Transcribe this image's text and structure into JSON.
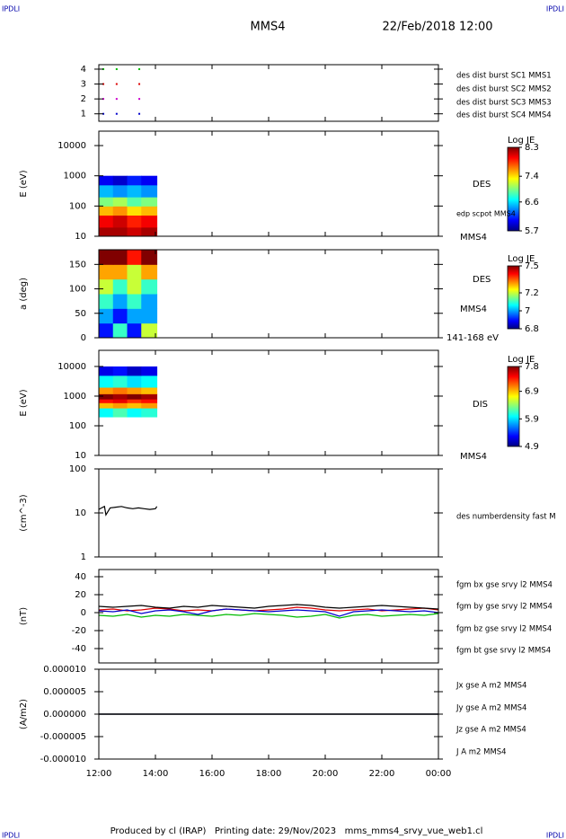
{
  "header": {
    "left_tag": "IPDLI",
    "right_tag": "IPDLI",
    "title": "MMS4",
    "date": "22/Feb/2018 12:00"
  },
  "footer": {
    "text": "Produced by cl (IRAP)   Printing date: 29/Nov/2023   mms_mms4_srvy_vue_web1.cl",
    "left_tag": "IPDLI",
    "right_tag": "IPDLI"
  },
  "chart_data": [
    {
      "type": "scatter",
      "ylim": [
        0.5,
        4.3
      ],
      "yticks": [
        1,
        2,
        3,
        4
      ],
      "series": [
        {
          "name": "des dist burst SC1 MMS1",
          "color": "#0000cc",
          "x": [
            12.16,
            12.63,
            13.43
          ],
          "values": [
            1,
            1,
            1
          ]
        },
        {
          "name": "des dist burst SC2 MMS2",
          "color": "#cc00cc",
          "x": [
            12.16,
            12.63,
            13.43
          ],
          "values": [
            2,
            2,
            2
          ]
        },
        {
          "name": "des dist burst SC3 MMS3",
          "color": "#dd0000",
          "x": [
            12.16,
            12.63,
            13.43
          ],
          "values": [
            3,
            3,
            3
          ]
        },
        {
          "name": "des dist burst SC4 MMS4",
          "color": "#00bb00",
          "x": [
            12.16,
            12.63,
            13.43
          ],
          "values": [
            4,
            4,
            4
          ]
        }
      ]
    },
    {
      "type": "heatmap",
      "ylabel": "E (eV)",
      "log": true,
      "ylim": [
        10,
        30000
      ],
      "yticks": [
        10,
        100,
        1000,
        10000
      ],
      "side_labels": [
        "DES",
        "edp scpot MMS4",
        "MMS4"
      ],
      "xedges": [
        12.0,
        12.5,
        13.0,
        13.5,
        14.05
      ],
      "yedges": [
        10,
        20,
        50,
        100,
        200,
        500,
        1000
      ],
      "z": [
        [
          8.2,
          8.2,
          8.1,
          8.2
        ],
        [
          8.0,
          8.1,
          7.9,
          8.0
        ],
        [
          7.5,
          7.6,
          7.4,
          7.5
        ],
        [
          7.0,
          7.1,
          6.9,
          7.0
        ],
        [
          6.5,
          6.4,
          6.5,
          6.4
        ],
        [
          6.0,
          5.9,
          6.1,
          6.0
        ]
      ],
      "colorbar": {
        "label": "Log JE",
        "zlim": [
          5.7,
          8.3
        ],
        "zticks": [
          5.7,
          6.6,
          7.4,
          8.3
        ]
      }
    },
    {
      "type": "heatmap",
      "ylabel": "a (deg)",
      "log": false,
      "ylim": [
        0,
        180
      ],
      "yticks": [
        0,
        50,
        100,
        150
      ],
      "side_labels": [
        "DES",
        "MMS4",
        "141-168 eV"
      ],
      "xedges": [
        12.0,
        12.5,
        13.0,
        13.5,
        14.05
      ],
      "yedges": [
        0,
        30,
        60,
        90,
        120,
        150,
        180
      ],
      "z": [
        [
          6.9,
          7.1,
          6.9,
          7.2
        ],
        [
          7.0,
          6.9,
          7.0,
          7.0
        ],
        [
          7.1,
          7.0,
          7.1,
          7.0
        ],
        [
          7.2,
          7.1,
          7.2,
          7.1
        ],
        [
          7.3,
          7.3,
          7.2,
          7.3
        ],
        [
          7.5,
          7.5,
          7.4,
          7.5
        ]
      ],
      "colorbar": {
        "label": "Log JE",
        "zlim": [
          6.8,
          7.5
        ],
        "zticks": [
          6.8,
          7.0,
          7.2,
          7.5
        ]
      }
    },
    {
      "type": "heatmap",
      "ylabel": "E (eV)",
      "log": true,
      "ylim": [
        10,
        35000
      ],
      "yticks": [
        10,
        100,
        1000,
        10000
      ],
      "side_labels": [
        "DIS",
        "MMS4"
      ],
      "xedges": [
        12.0,
        12.5,
        13.0,
        13.5,
        14.05
      ],
      "yedges": [
        200,
        400,
        600,
        800,
        1200,
        2000,
        5000,
        10000
      ],
      "z": [
        [
          6.0,
          6.2,
          6.0,
          6.1
        ],
        [
          6.9,
          7.0,
          6.9,
          7.0
        ],
        [
          7.4,
          7.5,
          7.3,
          7.4
        ],
        [
          7.8,
          7.7,
          7.8,
          7.7
        ],
        [
          7.0,
          7.1,
          7.0,
          6.9
        ],
        [
          6.0,
          6.1,
          5.9,
          6.0
        ],
        [
          5.2,
          5.3,
          5.1,
          5.2
        ]
      ],
      "colorbar": {
        "label": "Log JE",
        "zlim": [
          4.9,
          7.8
        ],
        "zticks": [
          4.9,
          5.9,
          6.9,
          7.8
        ]
      }
    },
    {
      "type": "line",
      "ylabel": "(cm^-3)",
      "log": true,
      "ylim": [
        1,
        100
      ],
      "yticks": [
        1,
        10,
        100
      ],
      "series": [
        {
          "name": "des numberdensity fast M",
          "color": "#000000",
          "x": [
            12.0,
            12.1,
            12.2,
            12.25,
            12.4,
            12.6,
            12.8,
            13.0,
            13.2,
            13.4,
            13.6,
            13.8,
            14.0,
            14.05
          ],
          "values": [
            12,
            13,
            14,
            9,
            13,
            13.5,
            14,
            13,
            12.5,
            13,
            12.5,
            12,
            12.5,
            14
          ]
        }
      ]
    },
    {
      "type": "line",
      "ylabel": "(nT)",
      "log": false,
      "ylim": [
        -56,
        48
      ],
      "yticks": [
        -40,
        -20,
        0,
        20,
        40
      ],
      "series": [
        {
          "name": "fgm bx gse srvy l2 MMS4",
          "color": "#dd0000",
          "x": [
            12,
            12.5,
            13,
            13.5,
            14,
            14.5,
            15,
            15.5,
            16,
            16.5,
            17,
            17.5,
            18,
            18.5,
            19,
            19.5,
            20,
            20.5,
            21,
            21.5,
            22,
            22.5,
            23,
            23.5,
            24
          ],
          "values": [
            3,
            4,
            2,
            3,
            5,
            4,
            2,
            3,
            2,
            4,
            3,
            2,
            3,
            4,
            6,
            5,
            3,
            2,
            3,
            4,
            2,
            3,
            4,
            5,
            3
          ]
        },
        {
          "name": "fgm by gse srvy l2 MMS4",
          "color": "#00bb00",
          "x": [
            12,
            12.5,
            13,
            13.5,
            14,
            14.5,
            15,
            15.5,
            16,
            16.5,
            17,
            17.5,
            18,
            18.5,
            19,
            19.5,
            20,
            20.5,
            21,
            21.5,
            22,
            22.5,
            23,
            23.5,
            24
          ],
          "values": [
            -3,
            -4,
            -2,
            -5,
            -3,
            -4,
            -2,
            -3,
            -4,
            -2,
            -3,
            -1,
            -2,
            -3,
            -5,
            -4,
            -2,
            -6,
            -3,
            -2,
            -4,
            -3,
            -2,
            -3,
            -1
          ]
        },
        {
          "name": "fgm bz gse srvy l2 MMS4",
          "color": "#0000cc",
          "x": [
            12,
            12.5,
            13,
            13.5,
            14,
            14.5,
            15,
            15.5,
            16,
            16.5,
            17,
            17.5,
            18,
            18.5,
            19,
            19.5,
            20,
            20.5,
            21,
            21.5,
            22,
            22.5,
            23,
            23.5,
            24
          ],
          "values": [
            2,
            1,
            3,
            -1,
            2,
            3,
            1,
            -2,
            2,
            4,
            3,
            2,
            1,
            2,
            3,
            2,
            1,
            -4,
            1,
            2,
            3,
            2,
            1,
            2,
            0
          ]
        },
        {
          "name": "fgm bt gse srvy l2 MMS4",
          "color": "#000000",
          "x": [
            12,
            12.5,
            13,
            13.5,
            14,
            14.5,
            15,
            15.5,
            16,
            16.5,
            17,
            17.5,
            18,
            18.5,
            19,
            19.5,
            20,
            20.5,
            21,
            21.5,
            22,
            22.5,
            23,
            23.5,
            24
          ],
          "values": [
            7,
            6,
            7,
            8,
            6,
            5,
            7,
            6,
            8,
            7,
            6,
            5,
            7,
            8,
            9,
            8,
            6,
            5,
            6,
            7,
            8,
            7,
            6,
            5,
            4
          ]
        }
      ]
    },
    {
      "type": "line",
      "ylabel": "(A/m2)",
      "log": false,
      "ylim": [
        -1e-05,
        1e-05
      ],
      "yticks": [
        {
          "value": -1e-05,
          "label": "-0.000010"
        },
        {
          "value": -5e-06,
          "label": "-0.000005"
        },
        {
          "value": 0,
          "label": "0.000000"
        },
        {
          "value": 5e-06,
          "label": "0.000005"
        },
        {
          "value": 1e-05,
          "label": "0.000010"
        }
      ],
      "xlim": [
        12,
        24
      ],
      "xticks": [
        {
          "value": 12,
          "label": "12:00"
        },
        {
          "value": 14,
          "label": "14:00"
        },
        {
          "value": 16,
          "label": "16:00"
        },
        {
          "value": 18,
          "label": "18:00"
        },
        {
          "value": 20,
          "label": "20:00"
        },
        {
          "value": 22,
          "label": "22:00"
        },
        {
          "value": 24,
          "label": "00:00"
        }
      ],
      "series": [
        {
          "name": "Jx gse A m2 MMS4",
          "color": "#dd0000",
          "x": [
            12,
            18,
            24
          ],
          "values": [
            0,
            0,
            0
          ]
        },
        {
          "name": "Jy gse A m2 MMS4",
          "color": "#00bb00",
          "x": [
            12,
            18,
            24
          ],
          "values": [
            0,
            0,
            0
          ]
        },
        {
          "name": "Jz gse A m2 MMS4",
          "color": "#0000cc",
          "x": [
            12,
            18,
            24
          ],
          "values": [
            0,
            0,
            0
          ]
        },
        {
          "name": "J A m2 MMS4",
          "color": "#000000",
          "x": [
            12,
            18,
            24
          ],
          "values": [
            0,
            0,
            0
          ]
        }
      ]
    }
  ]
}
